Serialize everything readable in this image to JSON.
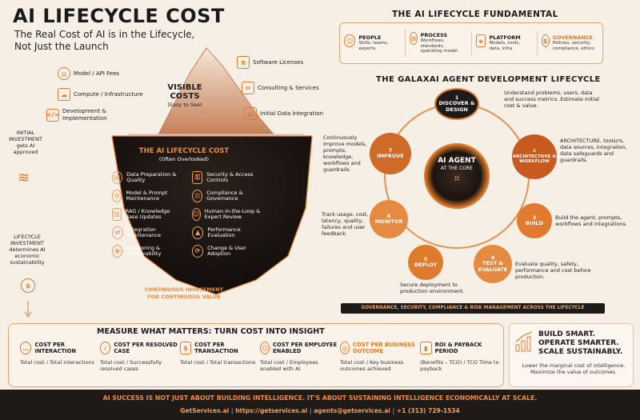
{
  "title": "AI LIFECYCLE COST",
  "subtitle": "The Real Cost of AI is in the Lifecycle, Not Just the Launch",
  "visible": {
    "heading": "VISIBLE COSTS",
    "note": "(Easy to See)",
    "left": [
      "Model / API Fees",
      "Compute / Infrastructure",
      "Development & Implementation"
    ],
    "right": [
      "Software Licenses",
      "Consulting & Services",
      "Initial Data Integration"
    ]
  },
  "initial": {
    "line1": "INITIAL",
    "line2": "INVESTMENT",
    "line3": "gets AI",
    "line4": "approved"
  },
  "lifecycle_inv": {
    "line1": "LIFECYCLE",
    "line2": "INVESTMENT",
    "line3": "determines AI",
    "line4": "economic",
    "line5": "sustainability"
  },
  "hidden": {
    "heading": "THE AI LIFECYCLE COST",
    "note": "(Often Overlooked)",
    "left": [
      "Data Preparation & Quality",
      "Model & Prompt Maintenance",
      "RAG / Knowledge Base Updates",
      "Integration Maintenance",
      "Monitoring & Observability"
    ],
    "right": [
      "Security & Access Controls",
      "Compliance & Governance",
      "Human-in-the-Loop & Expert Review",
      "Performance Evaluation",
      "Change & User Adoption"
    ],
    "footer1": "CONTINUOUS INVESTMENT",
    "footer2": "FOR CONTINUOUS VALUE"
  },
  "fundamental": {
    "heading": "THE AI LIFECYCLE FUNDAMENTAL",
    "items": [
      {
        "title": "PEOPLE",
        "desc": "Skills, teams, experts"
      },
      {
        "title": "PROCESS",
        "desc": "Workflows, standards, operating model"
      },
      {
        "title": "PLATFORM",
        "desc": "Models, tools, data, infra"
      },
      {
        "title": "GOVERNANCE",
        "desc": "Policies, security, compliance, ethics"
      }
    ]
  },
  "galaxai": {
    "heading": "THE GALAXAI AGENT DEVELOPMENT LIFECYCLE",
    "core1": "AI AGENT",
    "core2": "AT THE CORE",
    "nodes": [
      {
        "num": "1",
        "label": "DISCOVER & DESIGN",
        "desc": "Understand problems, users, data and success metrics. Estimate initial cost & value."
      },
      {
        "num": "2",
        "label": "ARCHITECTURE & WORKFLOW",
        "desc": "ARCHITECTURE, tools/rs, data sources, integration, data safeguards and guardrails."
      },
      {
        "num": "3",
        "label": "BUILD",
        "desc": "Build the agent, prompts, workflows and integrations."
      },
      {
        "num": "4",
        "label": "TEST & EVALUATE",
        "desc": "Evaluate quality, safety, performance and cost before production."
      },
      {
        "num": "5",
        "label": "DEPLOY",
        "desc": "Secure deployment to production environment."
      },
      {
        "num": "6",
        "label": "MONITOR",
        "desc": "Track usage, cost, latency, quality, failures and user feedback."
      },
      {
        "num": "7",
        "label": "IMPROVE",
        "desc": "Continuously improve models, prompts, knowledge, workflows and guardrails."
      }
    ],
    "banner": "GOVERNANCE, SECURITY, COMPLIANCE & RISK MANAGEMENT ACROSS THE LIFECYCLE"
  },
  "measure": {
    "heading": "MEASURE  WHAT MATTERS: TURN COST INTO INSIGHT",
    "cells": [
      {
        "title": "COST PER INTERACTION",
        "desc": "Total cost / Total interactions"
      },
      {
        "title": "COST PER RESOLVED CASE",
        "desc": "Total cost / Successfully resolved cases"
      },
      {
        "title": "COST PER TRANSACTION",
        "desc": "Total cost / Total transactions"
      },
      {
        "title": "COST PER EMPLOYEE ENABLED",
        "desc": "Total cost / Employees enabled with AI"
      },
      {
        "title": "COST PER BUSINESS OUTCOME",
        "desc": "Total cost / Key business outcomes achieved"
      },
      {
        "title": "ROI & PAYBACK PERIOD",
        "desc": "(Benefits – TCO) / TCO Time to payback"
      }
    ]
  },
  "build": {
    "line1": "BUILD SMART.",
    "line2": "OPERATE SMARTER.",
    "line3": "SCALE SUSTAINABLY.",
    "desc": "Lower the marginal cost of intelligence. Maximize the value of outcomes."
  },
  "footer": {
    "tagline": "AI SUCCESS IS NOT JUST ABOUT BUILDING INTELLIGENCE. IT'S ABOUT SUSTAINING INTELLIGENCE ECONOMICALLY AT SCALE.",
    "site": "GetServices.ai",
    "url": "https://getservices.ai",
    "email": "agents@getservices.ai",
    "phone": "+1 (313) 729-1534"
  },
  "colors": {
    "accent": "#e07a2c",
    "dark": "#1d1a18",
    "bg": "#f6efe6"
  }
}
